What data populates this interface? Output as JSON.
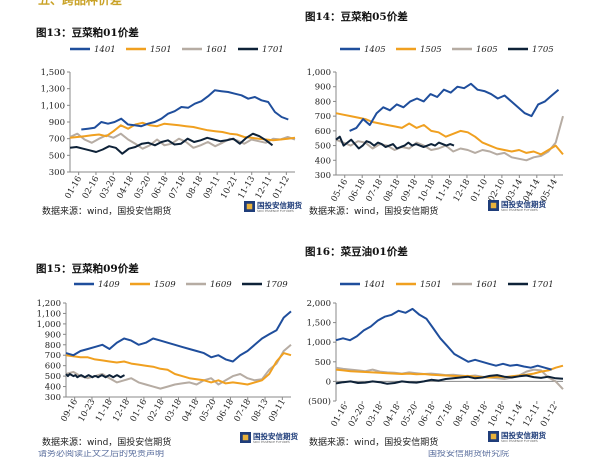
{
  "page": {
    "header_text": "五、跨品种价差",
    "footer_left": "请务必阅读正文之后的免责声明",
    "footer_right": "国投安信期货研究院"
  },
  "colors": {
    "blue": "#1f4e9c",
    "orange": "#f0a020",
    "gray": "#b6aca3",
    "navy": "#0e2238",
    "axis": "#888888"
  },
  "chart_data": [
    {
      "id": "fig13",
      "type": "line",
      "title": "图13：豆菜粕01价差",
      "source": "数据来源：wind，国投安信期货",
      "logo_name": "国投安信期货",
      "logo_sub": "SDIC ESSENCE FUTURES",
      "ylim": [
        300,
        1500
      ],
      "yticks": [
        300,
        500,
        700,
        900,
        1100,
        1300,
        1500
      ],
      "ytick_labels": [
        "300",
        "500",
        "700",
        "900",
        "1,100",
        "1,300",
        "1,500"
      ],
      "xtick_labels": [
        "01-16",
        "02-16",
        "03-20",
        "04-18",
        "05-20",
        "06-18",
        "07-18",
        "08-18",
        "09-11",
        "10-21",
        "11-13",
        "12-11",
        "01-12"
      ],
      "series": [
        {
          "name": "1401",
          "color": "blue",
          "start": 0.05,
          "end": 0.97,
          "values": [
            810,
            820,
            830,
            900,
            880,
            900,
            940,
            870,
            860,
            850,
            880,
            900,
            940,
            1000,
            1030,
            1080,
            1070,
            1120,
            1150,
            1210,
            1280,
            1270,
            1260,
            1240,
            1220,
            1180,
            1200,
            1160,
            1140,
            1020,
            960,
            930
          ]
        },
        {
          "name": "1501",
          "color": "orange",
          "start": 0.0,
          "end": 1.0,
          "values": [
            710,
            720,
            730,
            740,
            750,
            730,
            790,
            860,
            820,
            870,
            890,
            860,
            850,
            880,
            870,
            860,
            850,
            840,
            820,
            800,
            790,
            780,
            760,
            750,
            720,
            710,
            700,
            690,
            680,
            690,
            700,
            710
          ]
        },
        {
          "name": "1601",
          "color": "gray",
          "start": 0.0,
          "end": 1.0,
          "values": [
            720,
            760,
            690,
            650,
            700,
            740,
            710,
            760,
            690,
            640,
            580,
            620,
            690,
            620,
            640,
            700,
            660,
            590,
            620,
            660,
            610,
            650,
            700,
            680,
            640,
            690,
            670,
            650,
            700,
            690,
            720,
            690
          ]
        },
        {
          "name": "1701",
          "color": "navy",
          "start": 0.0,
          "end": 0.9,
          "values": [
            590,
            600,
            580,
            560,
            540,
            570,
            610,
            590,
            520,
            580,
            600,
            640,
            650,
            620,
            660,
            680,
            630,
            640,
            700,
            660,
            680,
            710,
            690,
            670,
            680,
            700,
            640,
            710,
            760,
            730,
            680,
            620
          ]
        }
      ]
    },
    {
      "id": "fig14",
      "type": "line",
      "title": "图14：豆菜粕05价差",
      "source": "数据来源：wind，国投安信期货",
      "logo_name": "国投安信期货",
      "logo_sub": "SDIC ESSENCE FUTURES",
      "ylim": [
        300,
        1000
      ],
      "yticks": [
        300,
        400,
        500,
        600,
        700,
        800,
        900,
        1000
      ],
      "ytick_labels": [
        "300",
        "400",
        "500",
        "600",
        "700",
        "800",
        "900",
        "1,000"
      ],
      "xtick_labels": [
        "05-16",
        "06-18",
        "07-18",
        "08-18",
        "09-18",
        "10-18",
        "11-18",
        "12-18",
        "01-10",
        "02-10",
        "03-14",
        "04-14",
        "05-14"
      ],
      "series": [
        {
          "name": "1405",
          "color": "blue",
          "start": 0.06,
          "end": 0.98,
          "values": [
            600,
            620,
            680,
            640,
            720,
            760,
            740,
            780,
            760,
            800,
            820,
            800,
            850,
            830,
            880,
            860,
            900,
            890,
            920,
            880,
            870,
            850,
            820,
            840,
            800,
            760,
            720,
            700,
            780,
            800,
            840,
            880
          ]
        },
        {
          "name": "1505",
          "color": "orange",
          "start": 0.0,
          "end": 1.0,
          "values": [
            720,
            710,
            700,
            690,
            680,
            660,
            650,
            640,
            630,
            620,
            650,
            620,
            640,
            600,
            590,
            560,
            580,
            600,
            590,
            560,
            520,
            500,
            480,
            470,
            460,
            470,
            450,
            460,
            440,
            470,
            500,
            440
          ]
        },
        {
          "name": "1605",
          "color": "gray",
          "start": 0.0,
          "end": 1.0,
          "values": [
            540,
            520,
            500,
            530,
            520,
            480,
            510,
            500,
            470,
            490,
            480,
            520,
            500,
            470,
            480,
            500,
            460,
            480,
            470,
            450,
            470,
            460,
            440,
            450,
            420,
            410,
            400,
            420,
            430,
            460,
            520,
            700
          ]
        },
        {
          "name": "1705",
          "color": "navy",
          "start": 0.0,
          "end": 0.52,
          "values": [
            540,
            560,
            500,
            520,
            540,
            510,
            480,
            500,
            530,
            520,
            500,
            520,
            510,
            490,
            500,
            510,
            480,
            490,
            500,
            520,
            500,
            510,
            500,
            490,
            500,
            510,
            500,
            520,
            510,
            500,
            510,
            500
          ]
        }
      ]
    },
    {
      "id": "fig15",
      "type": "line",
      "title": "图15：豆菜粕09价差",
      "source": "数据来源：wind，国投安信期货",
      "logo_name": "国投安信期货",
      "logo_sub": "SDIC ESSENCE FUTURES",
      "ylim": [
        300,
        1200
      ],
      "yticks": [
        300,
        400,
        500,
        600,
        700,
        800,
        900,
        1000,
        1100,
        1200
      ],
      "ytick_labels": [
        "300",
        "400",
        "500",
        "600",
        "700",
        "800",
        "900",
        "1,000",
        "1,100",
        "1,200"
      ],
      "xtick_labels": [
        "09-16",
        "10-23",
        "11-18",
        "12-18",
        "01-16",
        "02-18",
        "03-18",
        "04-18",
        "05-20",
        "06-18",
        "07-18",
        "08-13",
        "09-11"
      ],
      "series": [
        {
          "name": "1409",
          "color": "blue",
          "start": 0.0,
          "end": 1.0,
          "values": [
            720,
            700,
            740,
            760,
            780,
            800,
            760,
            820,
            860,
            840,
            800,
            820,
            860,
            840,
            820,
            800,
            780,
            760,
            740,
            720,
            680,
            700,
            660,
            640,
            700,
            740,
            800,
            860,
            900,
            940,
            1060,
            1120
          ]
        },
        {
          "name": "1509",
          "color": "orange",
          "start": 0.0,
          "end": 1.0,
          "values": [
            700,
            690,
            680,
            680,
            660,
            650,
            640,
            630,
            640,
            620,
            610,
            600,
            590,
            570,
            560,
            520,
            500,
            480,
            470,
            460,
            440,
            460,
            430,
            440,
            430,
            420,
            440,
            460,
            520,
            640,
            720,
            700
          ]
        },
        {
          "name": "1609",
          "color": "gray",
          "start": 0.0,
          "end": 1.0,
          "values": [
            520,
            540,
            500,
            480,
            500,
            520,
            480,
            440,
            460,
            480,
            440,
            420,
            400,
            380,
            400,
            420,
            430,
            440,
            420,
            460,
            480,
            420,
            460,
            500,
            520,
            480,
            460,
            470,
            560,
            620,
            740,
            800
          ]
        },
        {
          "name": "1709",
          "color": "navy",
          "start": 0.0,
          "end": 0.26,
          "values": [
            520,
            500,
            520,
            510,
            500,
            510,
            490,
            500,
            510,
            500,
            490,
            500,
            510,
            500,
            490,
            500,
            500,
            490,
            500,
            510,
            500,
            490,
            500,
            510,
            500,
            490,
            500,
            510,
            500,
            490,
            500,
            510
          ]
        }
      ]
    },
    {
      "id": "fig16",
      "type": "line",
      "title": "图16：菜豆油01价差",
      "source": "数据来源：wind，国投安信期货",
      "logo_name": "国投安信期货",
      "logo_sub": "SDIC ESSENCE FUTURES",
      "ylim": [
        -500,
        2000
      ],
      "yticks": [
        -500,
        0,
        500,
        1000,
        1500,
        2000
      ],
      "ytick_labels": [
        "(500)",
        "0",
        "500",
        "1,000",
        "1,500",
        "2,000"
      ],
      "xtick_labels": [
        "01-16",
        "02-20",
        "03-18",
        "04-18",
        "05-20",
        "06-18",
        "07-18",
        "08-18",
        "09-18",
        "10-18",
        "11-14",
        "12-11",
        "01-12"
      ],
      "series": [
        {
          "name": "1401",
          "color": "blue",
          "start": 0.0,
          "end": 0.95,
          "values": [
            1050,
            1100,
            1050,
            1150,
            1300,
            1400,
            1550,
            1650,
            1700,
            1800,
            1750,
            1850,
            1700,
            1600,
            1350,
            1100,
            900,
            700,
            600,
            500,
            550,
            500,
            450,
            400,
            450,
            400,
            420,
            380,
            350,
            400,
            350,
            300
          ]
        },
        {
          "name": "1501",
          "color": "orange",
          "start": 0.0,
          "end": 1.0,
          "values": [
            300,
            280,
            260,
            250,
            240,
            230,
            220,
            210,
            200,
            190,
            200,
            180,
            190,
            170,
            160,
            150,
            140,
            130,
            140,
            120,
            110,
            100,
            120,
            110,
            130,
            150,
            170,
            200,
            250,
            280,
            350,
            400
          ]
        },
        {
          "name": "1601",
          "color": "gray",
          "start": 0.0,
          "end": 1.0,
          "values": [
            350,
            320,
            300,
            280,
            260,
            300,
            250,
            230,
            220,
            200,
            230,
            210,
            190,
            200,
            180,
            160,
            170,
            150,
            130,
            150,
            120,
            100,
            80,
            60,
            100,
            150,
            250,
            300,
            280,
            100,
            0,
            -200
          ]
        },
        {
          "name": "1701",
          "color": "navy",
          "start": 0.0,
          "end": 1.0,
          "values": [
            -50,
            -20,
            0,
            -40,
            -30,
            0,
            -20,
            -60,
            -40,
            0,
            -20,
            -30,
            0,
            40,
            20,
            60,
            80,
            100,
            120,
            80,
            100,
            140,
            160,
            120,
            100,
            130,
            150,
            110,
            90,
            120,
            80,
            70
          ]
        }
      ]
    }
  ]
}
